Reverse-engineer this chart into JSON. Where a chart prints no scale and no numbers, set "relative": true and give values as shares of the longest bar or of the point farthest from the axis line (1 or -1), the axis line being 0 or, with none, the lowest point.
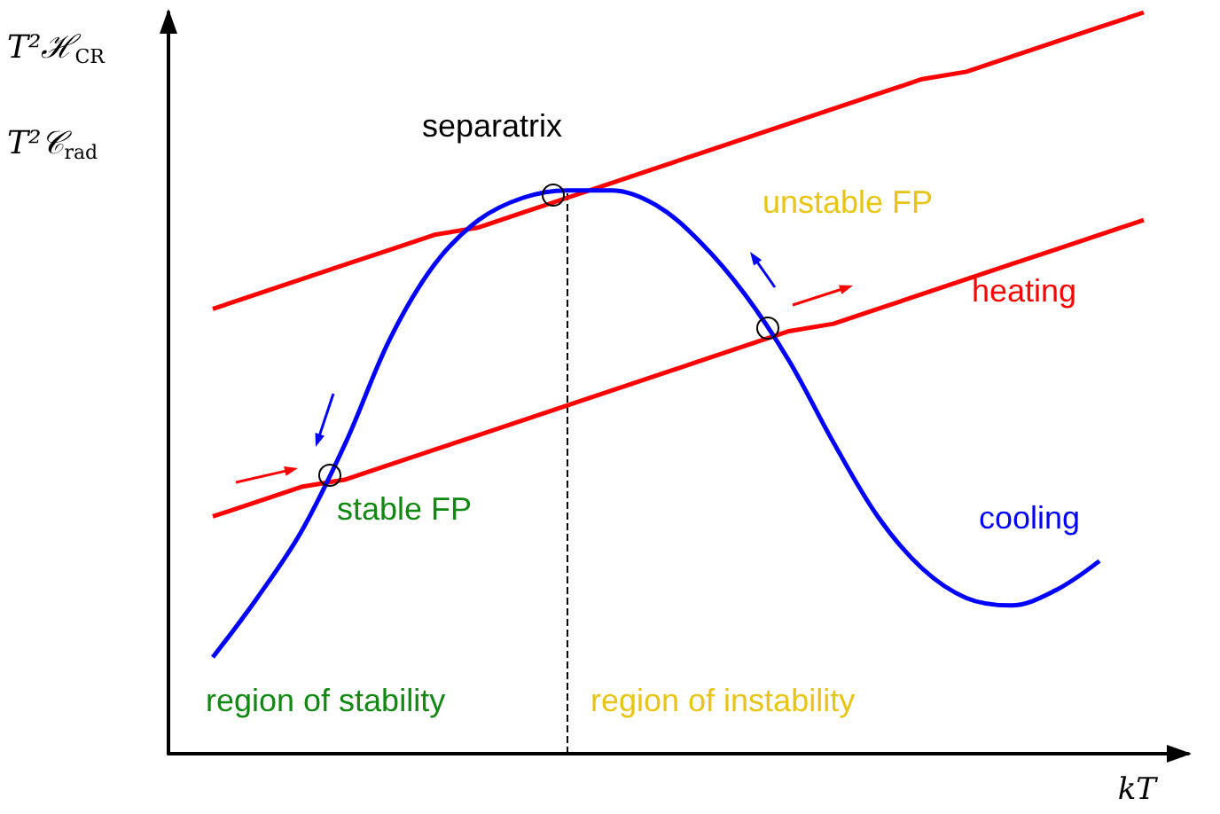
{
  "chart_data": {
    "type": "line",
    "relative": true,
    "xlabel": "kT",
    "ylabel": "T²ℋ$_{CR}$",
    "categories": [
      null,
      null,
      null,
      null,
      null,
      null,
      null,
      null,
      null,
      null,
      null,
      null,
      null,
      null,
      null,
      null,
      null,
      null,
      null,
      null,
      null,
      null,
      null,
      null
    ],
    "series": [
      {
        "color": "#ff0000",
        "values": [
          null,
          0.6,
          0.62,
          0.64,
          0.66,
          0.68,
          0.7,
          0.71,
          0.73,
          0.75,
          0.77,
          0.79,
          0.81,
          0.83,
          0.85,
          0.87,
          0.89,
          0.91,
          0.92,
          0.94,
          0.96,
          0.98,
          1.0,
          null
        ]
      },
      {
        "name": "heating",
        "color": "#ff0000",
        "values": [
          null,
          0.32,
          0.34,
          0.36,
          0.37,
          0.39,
          0.41,
          0.43,
          0.45,
          0.47,
          0.49,
          0.51,
          0.53,
          0.55,
          0.57,
          0.58,
          0.6,
          0.62,
          0.64,
          0.66,
          0.68,
          0.7,
          0.72,
          null
        ]
      },
      {
        "name": "cooling",
        "color": "#0000ff",
        "values": [
          null,
          0.13,
          0.21,
          0.3,
          0.42,
          0.56,
          0.66,
          0.72,
          0.75,
          0.76,
          0.76,
          0.74,
          0.69,
          0.62,
          0.53,
          0.42,
          0.32,
          0.25,
          0.21,
          0.2,
          0.22,
          0.26,
          null,
          null
        ]
      }
    ],
    "annotations": [
      "T²𝒞$_{rad}$",
      "separatrix",
      "unstable FP",
      "stable FP",
      "region of stability",
      "region of instability"
    ],
    "ref_lines": [
      {
        "axis": "x",
        "value": null,
        "line_style": "dashed",
        "color": "#000000"
      }
    ],
    "marker": "none",
    "grid": false,
    "legend": false
  }
}
